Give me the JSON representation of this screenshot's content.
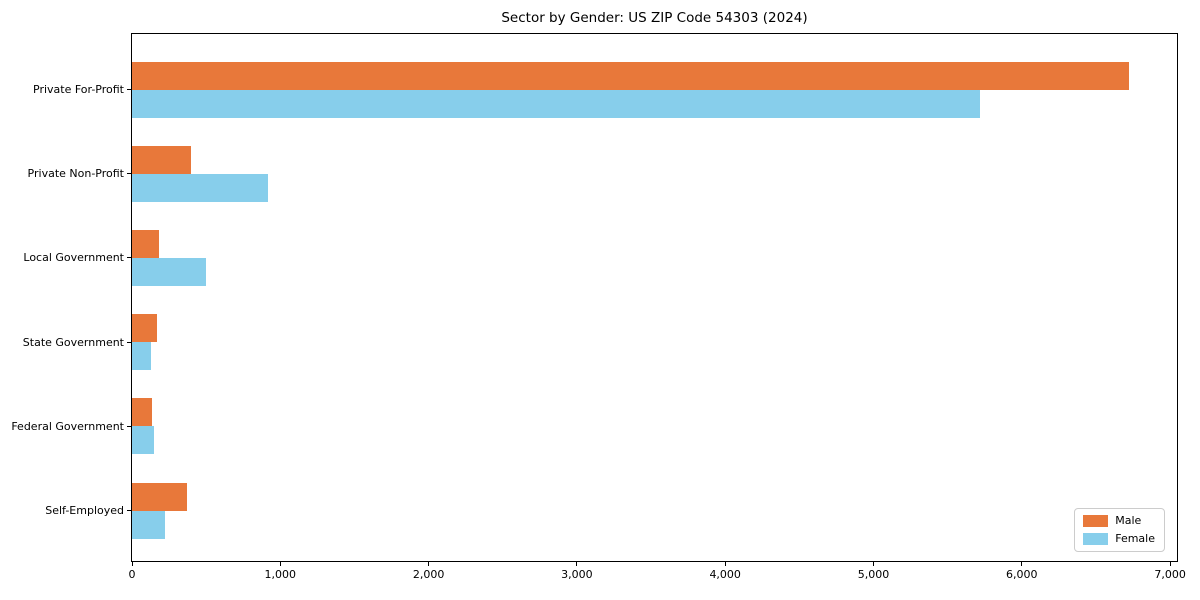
{
  "chart_data": {
    "type": "bar",
    "orientation": "horizontal",
    "title": "Sector by Gender: US ZIP Code 54303 (2024)",
    "categories": [
      "Private For-Profit",
      "Private Non-Profit",
      "Local Government",
      "State Government",
      "Federal Government",
      "Self-Employed"
    ],
    "series": [
      {
        "name": "Male",
        "color": "#e8783a",
        "values": [
          6720,
          400,
          180,
          170,
          135,
          370
        ]
      },
      {
        "name": "Female",
        "color": "#87ceeb",
        "values": [
          5720,
          920,
          500,
          130,
          150,
          220
        ]
      }
    ],
    "xlabel": "",
    "ylabel": "",
    "xlim": [
      0,
      7060
    ],
    "x_ticks": [
      0,
      1000,
      2000,
      3000,
      4000,
      5000,
      6000,
      7000
    ],
    "x_tick_labels": [
      "0",
      "1,000",
      "2,000",
      "3,000",
      "4,000",
      "5,000",
      "6,000",
      "7,000"
    ],
    "grid": false,
    "legend_position": "lower right",
    "colors": {
      "male": "#e8783a",
      "female": "#87ceeb",
      "spine": "#000000",
      "legend_border": "#cccccc"
    }
  }
}
